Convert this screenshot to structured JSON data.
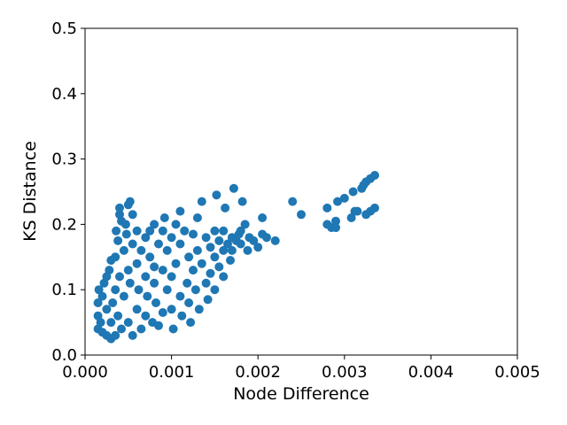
{
  "chart_data": {
    "type": "scatter",
    "title": "",
    "xlabel": "Node Difference",
    "ylabel": "KS Distance",
    "xlim": [
      0.0,
      0.005
    ],
    "ylim": [
      0.0,
      0.5
    ],
    "xticks": [
      "0.000",
      "0.001",
      "0.002",
      "0.003",
      "0.004",
      "0.005"
    ],
    "yticks": [
      "0.0",
      "0.1",
      "0.2",
      "0.3",
      "0.4",
      "0.5"
    ],
    "xtick_values": [
      0.0,
      0.001,
      0.002,
      0.003,
      0.004,
      0.005
    ],
    "ytick_values": [
      0.0,
      0.1,
      0.2,
      0.3,
      0.4,
      0.5
    ],
    "grid": false,
    "legend": "none",
    "marker_color": "#1f77b4",
    "series": [
      {
        "points": [
          [
            0.00015,
            0.04
          ],
          [
            0.00015,
            0.06
          ],
          [
            0.00015,
            0.08
          ],
          [
            0.00016,
            0.1
          ],
          [
            0.00018,
            0.05
          ],
          [
            0.0002,
            0.035
          ],
          [
            0.0002,
            0.09
          ],
          [
            0.00022,
            0.11
          ],
          [
            0.00025,
            0.03
          ],
          [
            0.00025,
            0.07
          ],
          [
            0.00025,
            0.12
          ],
          [
            0.00028,
            0.13
          ],
          [
            0.0003,
            0.025
          ],
          [
            0.0003,
            0.05
          ],
          [
            0.0003,
            0.145
          ],
          [
            0.00032,
            0.08
          ],
          [
            0.00035,
            0.03
          ],
          [
            0.00035,
            0.1
          ],
          [
            0.00035,
            0.15
          ],
          [
            0.00036,
            0.19
          ],
          [
            0.00038,
            0.175
          ],
          [
            0.00038,
            0.06
          ],
          [
            0.0004,
            0.215
          ],
          [
            0.0004,
            0.225
          ],
          [
            0.0004,
            0.12
          ],
          [
            0.00042,
            0.205
          ],
          [
            0.00042,
            0.04
          ],
          [
            0.00045,
            0.16
          ],
          [
            0.00045,
            0.09
          ],
          [
            0.00047,
            0.2
          ],
          [
            0.00048,
            0.185
          ],
          [
            0.0005,
            0.23
          ],
          [
            0.0005,
            0.13
          ],
          [
            0.0005,
            0.05
          ],
          [
            0.00052,
            0.235
          ],
          [
            0.00052,
            0.11
          ],
          [
            0.00055,
            0.17
          ],
          [
            0.00055,
            0.03
          ],
          [
            0.00055,
            0.215
          ],
          [
            0.0006,
            0.19
          ],
          [
            0.0006,
            0.14
          ],
          [
            0.0006,
            0.07
          ],
          [
            0.00062,
            0.1
          ],
          [
            0.00065,
            0.16
          ],
          [
            0.00065,
            0.04
          ],
          [
            0.0007,
            0.18
          ],
          [
            0.0007,
            0.12
          ],
          [
            0.0007,
            0.06
          ],
          [
            0.00072,
            0.09
          ],
          [
            0.00075,
            0.19
          ],
          [
            0.00075,
            0.15
          ],
          [
            0.00078,
            0.05
          ],
          [
            0.0008,
            0.2
          ],
          [
            0.0008,
            0.11
          ],
          [
            0.0008,
            0.135
          ],
          [
            0.00082,
            0.08
          ],
          [
            0.00085,
            0.17
          ],
          [
            0.00085,
            0.045
          ],
          [
            0.0009,
            0.19
          ],
          [
            0.0009,
            0.13
          ],
          [
            0.0009,
            0.065
          ],
          [
            0.00092,
            0.21
          ],
          [
            0.00095,
            0.1
          ],
          [
            0.00095,
            0.16
          ],
          [
            0.001,
            0.18
          ],
          [
            0.001,
            0.12
          ],
          [
            0.001,
            0.07
          ],
          [
            0.00102,
            0.04
          ],
          [
            0.00105,
            0.2
          ],
          [
            0.00105,
            0.14
          ],
          [
            0.0011,
            0.09
          ],
          [
            0.0011,
            0.17
          ],
          [
            0.0011,
            0.22
          ],
          [
            0.00112,
            0.06
          ],
          [
            0.00115,
            0.19
          ],
          [
            0.00118,
            0.11
          ],
          [
            0.0012,
            0.15
          ],
          [
            0.0012,
            0.08
          ],
          [
            0.00122,
            0.05
          ],
          [
            0.00125,
            0.185
          ],
          [
            0.00125,
            0.13
          ],
          [
            0.00128,
            0.1
          ],
          [
            0.0013,
            0.16
          ],
          [
            0.0013,
            0.21
          ],
          [
            0.00132,
            0.07
          ],
          [
            0.00135,
            0.14
          ],
          [
            0.00135,
            0.235
          ],
          [
            0.0014,
            0.18
          ],
          [
            0.0014,
            0.11
          ],
          [
            0.00142,
            0.085
          ],
          [
            0.00145,
            0.165
          ],
          [
            0.00145,
            0.125
          ],
          [
            0.0015,
            0.15
          ],
          [
            0.0015,
            0.19
          ],
          [
            0.0015,
            0.1
          ],
          [
            0.00152,
            0.245
          ],
          [
            0.00155,
            0.175
          ],
          [
            0.00155,
            0.135
          ],
          [
            0.0016,
            0.16
          ],
          [
            0.0016,
            0.19
          ],
          [
            0.0016,
            0.12
          ],
          [
            0.00162,
            0.225
          ],
          [
            0.00165,
            0.17
          ],
          [
            0.00168,
            0.145
          ],
          [
            0.0017,
            0.18
          ],
          [
            0.0017,
            0.16
          ],
          [
            0.00172,
            0.255
          ],
          [
            0.00175,
            0.175
          ],
          [
            0.00178,
            0.185
          ],
          [
            0.0018,
            0.17
          ],
          [
            0.0018,
            0.19
          ],
          [
            0.00182,
            0.235
          ],
          [
            0.00185,
            0.2
          ],
          [
            0.00188,
            0.16
          ],
          [
            0.0019,
            0.18
          ],
          [
            0.00195,
            0.175
          ],
          [
            0.002,
            0.165
          ],
          [
            0.00205,
            0.185
          ],
          [
            0.00205,
            0.21
          ],
          [
            0.0021,
            0.18
          ],
          [
            0.0022,
            0.175
          ],
          [
            0.0024,
            0.235
          ],
          [
            0.0025,
            0.215
          ],
          [
            0.0028,
            0.225
          ],
          [
            0.0028,
            0.2
          ],
          [
            0.00285,
            0.195
          ],
          [
            0.0029,
            0.205
          ],
          [
            0.0029,
            0.195
          ],
          [
            0.00292,
            0.235
          ],
          [
            0.003,
            0.24
          ],
          [
            0.00308,
            0.21
          ],
          [
            0.0031,
            0.25
          ],
          [
            0.00312,
            0.22
          ],
          [
            0.00315,
            0.22
          ],
          [
            0.0032,
            0.255
          ],
          [
            0.00322,
            0.26
          ],
          [
            0.00325,
            0.215
          ],
          [
            0.00325,
            0.265
          ],
          [
            0.0033,
            0.22
          ],
          [
            0.0033,
            0.27
          ],
          [
            0.00335,
            0.225
          ],
          [
            0.00335,
            0.275
          ]
        ]
      }
    ]
  }
}
